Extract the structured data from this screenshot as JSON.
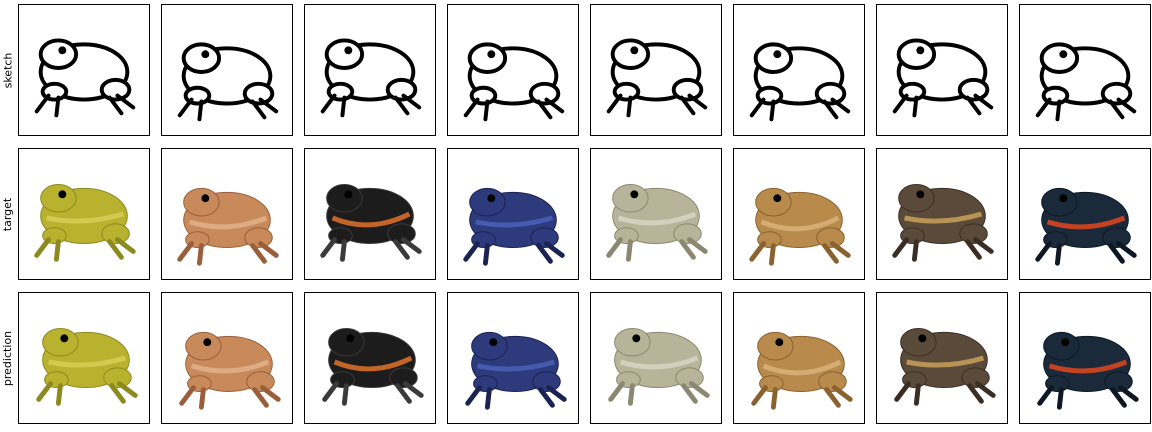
{
  "rows": [
    {
      "label": "sketch"
    },
    {
      "label": "target"
    },
    {
      "label": "prediction"
    }
  ],
  "samples": [
    {
      "colors": {
        "body": "#b9b22f",
        "shade": "#8c8a1f",
        "accent": "#d6cf55"
      },
      "icon": "green-tree-frog"
    },
    {
      "colors": {
        "body": "#c88a5a",
        "shade": "#9a5f3a",
        "accent": "#e2b08a"
      },
      "icon": "brown-frog"
    },
    {
      "colors": {
        "body": "#1c1c1c",
        "shade": "#3a3a3a",
        "accent": "#e0712a"
      },
      "icon": "striped-poison-dart-frog"
    },
    {
      "colors": {
        "body": "#2d3a7c",
        "shade": "#1b2352",
        "accent": "#4a62b8"
      },
      "icon": "blue-poison-dart-frog"
    },
    {
      "colors": {
        "body": "#b7b49a",
        "shade": "#8a8870",
        "accent": "#d8d6c4"
      },
      "icon": "pale-toad"
    },
    {
      "colors": {
        "body": "#b88a4c",
        "shade": "#8a6230",
        "accent": "#d9b27a"
      },
      "icon": "tan-toad"
    },
    {
      "colors": {
        "body": "#5a4a3a",
        "shade": "#3a2e24",
        "accent": "#c9a15a"
      },
      "icon": "dark-banded-frog"
    },
    {
      "colors": {
        "body": "#1a2a3a",
        "shade": "#0e1824",
        "accent": "#e0471f"
      },
      "icon": "red-blue-poison-dart-frog"
    }
  ]
}
